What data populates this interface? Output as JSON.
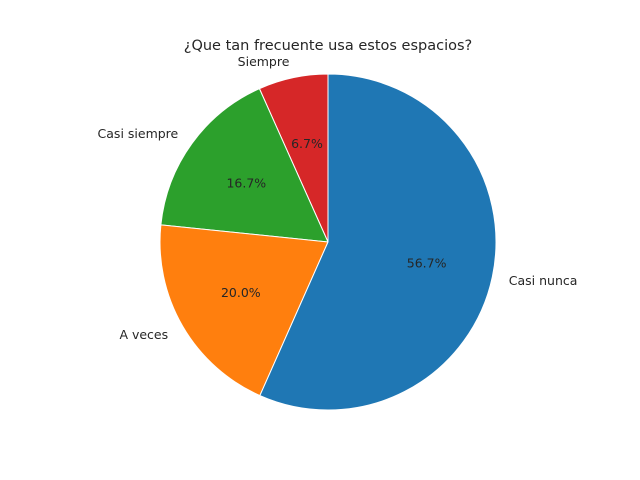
{
  "chart_data": {
    "type": "pie",
    "title": "¿Que tan frecuente usa estos espacios?",
    "categories": [
      "Siempre",
      "Casi siempre",
      "A veces",
      "Casi nunca"
    ],
    "values": [
      6.7,
      16.7,
      20.0,
      56.7
    ],
    "value_labels": [
      "6.7%",
      "16.7%",
      "20.0%",
      "56.7%"
    ],
    "colors": [
      "#d62728",
      "#2ca02c",
      "#ff7f0e",
      "#1f77b4"
    ],
    "start_angle_deg": 90,
    "direction": "counterclockwise",
    "legend": "none"
  }
}
